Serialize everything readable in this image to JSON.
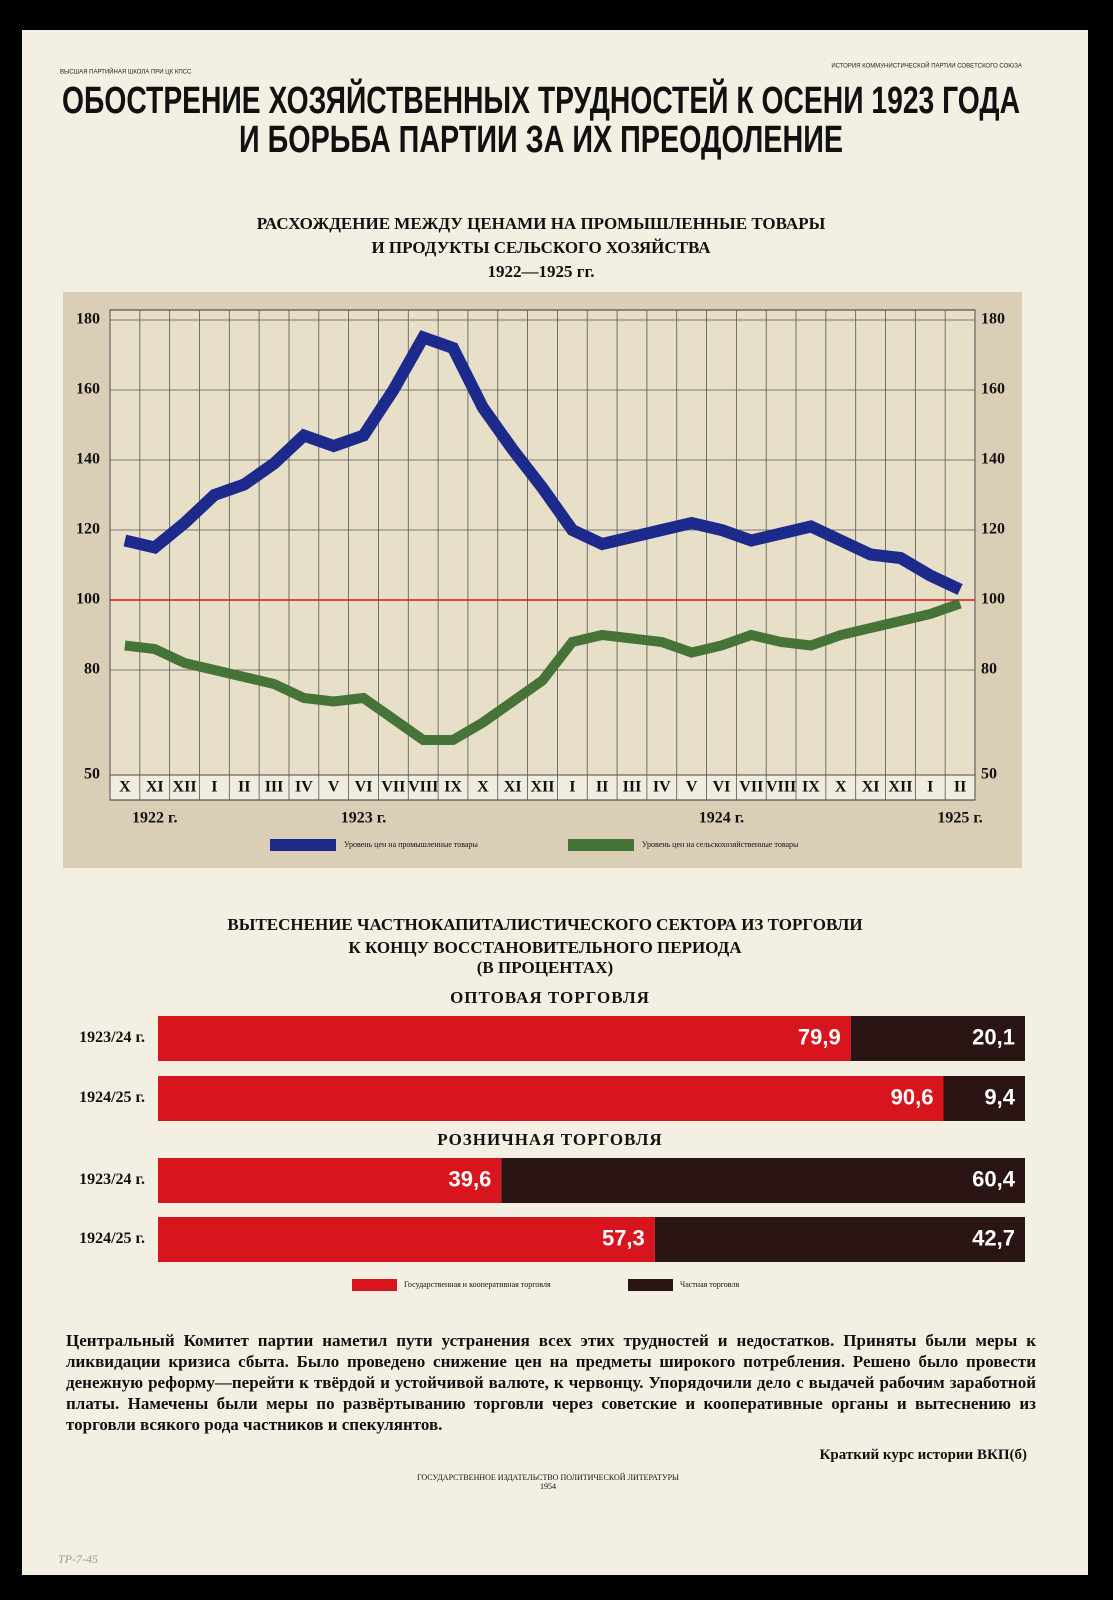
{
  "header": {
    "left": "ВЫСШАЯ ПАРТИЙНАЯ ШКОЛА ПРИ ЦК КПСС",
    "right": "ИСТОРИЯ КОММУНИСТИЧЕСКОЙ ПАРТИИ СОВЕТСКОГО СОЮЗА",
    "title": [
      "ОБОСТРЕНИЕ ХОЗЯЙСТВЕННЫХ ТРУДНОСТЕЙ К ОСЕНИ 1923 ГОДА",
      "И БОРЬБА ПАРТИИ ЗА ИХ ПРЕОДОЛЕНИЕ"
    ]
  },
  "chart_data": [
    {
      "type": "line",
      "title": [
        "РАСХОЖДЕНИЕ МЕЖДУ ЦЕНАМИ НА ПРОМЫШЛЕННЫЕ ТОВАРЫ",
        "И ПРОДУКТЫ СЕЛЬСКОГО ХОЗЯЙСТВА"
      ],
      "subtitle": "1922—1925 гг.",
      "categories": [
        "X",
        "XI",
        "XII",
        "I",
        "II",
        "III",
        "IV",
        "V",
        "VI",
        "VII",
        "VIII",
        "IX",
        "X",
        "XI",
        "XII",
        "I",
        "II",
        "III",
        "IV",
        "V",
        "VI",
        "VII",
        "VIII",
        "IX",
        "X",
        "XI",
        "XII",
        "I",
        "II"
      ],
      "year_labels": [
        null,
        "1922 г.",
        null,
        null,
        null,
        null,
        null,
        null,
        "1923 г.",
        null,
        null,
        null,
        null,
        null,
        null,
        null,
        null,
        null,
        null,
        null,
        "1924 г.",
        null,
        null,
        null,
        null,
        null,
        null,
        null,
        "1925 г."
      ],
      "series": [
        {
          "name": "Уровень цен на промышленные товары",
          "color": "#1c2a8c",
          "values": [
            117,
            115,
            122,
            130,
            133,
            139,
            147,
            144,
            147,
            160,
            175,
            172,
            155,
            143,
            132,
            120,
            116,
            118,
            120,
            122,
            120,
            117,
            119,
            121,
            117,
            113,
            112,
            107,
            103
          ]
        },
        {
          "name": "Уровень цен на сельскохозяйственные товары",
          "color": "#467337",
          "values": [
            87,
            86,
            82,
            80,
            78,
            76,
            72,
            71,
            72,
            66,
            60,
            60,
            65,
            71,
            77,
            88,
            90,
            89,
            88,
            85,
            87,
            90,
            88,
            87,
            90,
            92,
            94,
            96,
            99
          ]
        }
      ],
      "ylim": [
        50,
        180
      ],
      "yticks": [
        50,
        80,
        100,
        120,
        140,
        160,
        180
      ],
      "grid": true,
      "reference_line": {
        "value": 100,
        "color": "#e0141b"
      }
    },
    {
      "type": "bar",
      "orientation": "horizontal",
      "stacked": true,
      "title": [
        "ВЫТЕСНЕНИЕ ЧАСТНОКАПИТАЛИСТИЧЕСКОГО СЕКТОРА ИЗ ТОРГОВЛИ",
        "К КОНЦУ ВОССТАНОВИТЕЛЬНОГО ПЕРИОДА"
      ],
      "subtitle": "(В ПРОЦЕНТАХ)",
      "categories": [
        "1923/24 г.",
        "1924/25 г.",
        "1923/24 г.",
        "1924/25 г."
      ],
      "group_titles": [
        "ОПТОВАЯ ТОРГОВЛЯ",
        null,
        "РОЗНИЧНАЯ ТОРГОВЛЯ",
        null
      ],
      "series": [
        {
          "name": "Государственная и кооперативная торговля",
          "color": "#d8141c",
          "values": [
            79.9,
            90.6,
            39.6,
            57.3
          ],
          "value_labels": [
            "79,9",
            "90,6",
            "39,6",
            "57,3"
          ]
        },
        {
          "name": "Частная торговля",
          "color": "#2b1414",
          "values": [
            20.1,
            9.4,
            60.4,
            42.7
          ],
          "value_labels": [
            "20,1",
            "9,4",
            "60,4",
            "42,7"
          ]
        }
      ],
      "xlim": [
        0,
        100
      ]
    }
  ],
  "text": {
    "paragraph": "Центральный Комитет партии наметил пути устранения всех этих трудностей и недостатков. Приняты были меры к ликвидации кризиса сбыта. Было проведено снижение цен на предметы широкого потребления. Решено было провести денежную реформу—перейти к твёрдой и устойчивой валюте, к червонцу. Упорядочили дело с выдачей рабочим заработной платы. Намечены были меры по развёртыванию торговли через советские и кооперативные органы и вытеснению из торговли всякого рода частников и спекулянтов.",
    "source": "Краткий курс истории ВКП(б)"
  },
  "footer": {
    "publisher": "ГОСУДАРСТВЕННОЕ ИЗДАТЕЛЬСТВО ПОЛИТИЧЕСКОЙ ЛИТЕРАТУРЫ",
    "year": "1954",
    "inventory": "ТР-7-45"
  }
}
